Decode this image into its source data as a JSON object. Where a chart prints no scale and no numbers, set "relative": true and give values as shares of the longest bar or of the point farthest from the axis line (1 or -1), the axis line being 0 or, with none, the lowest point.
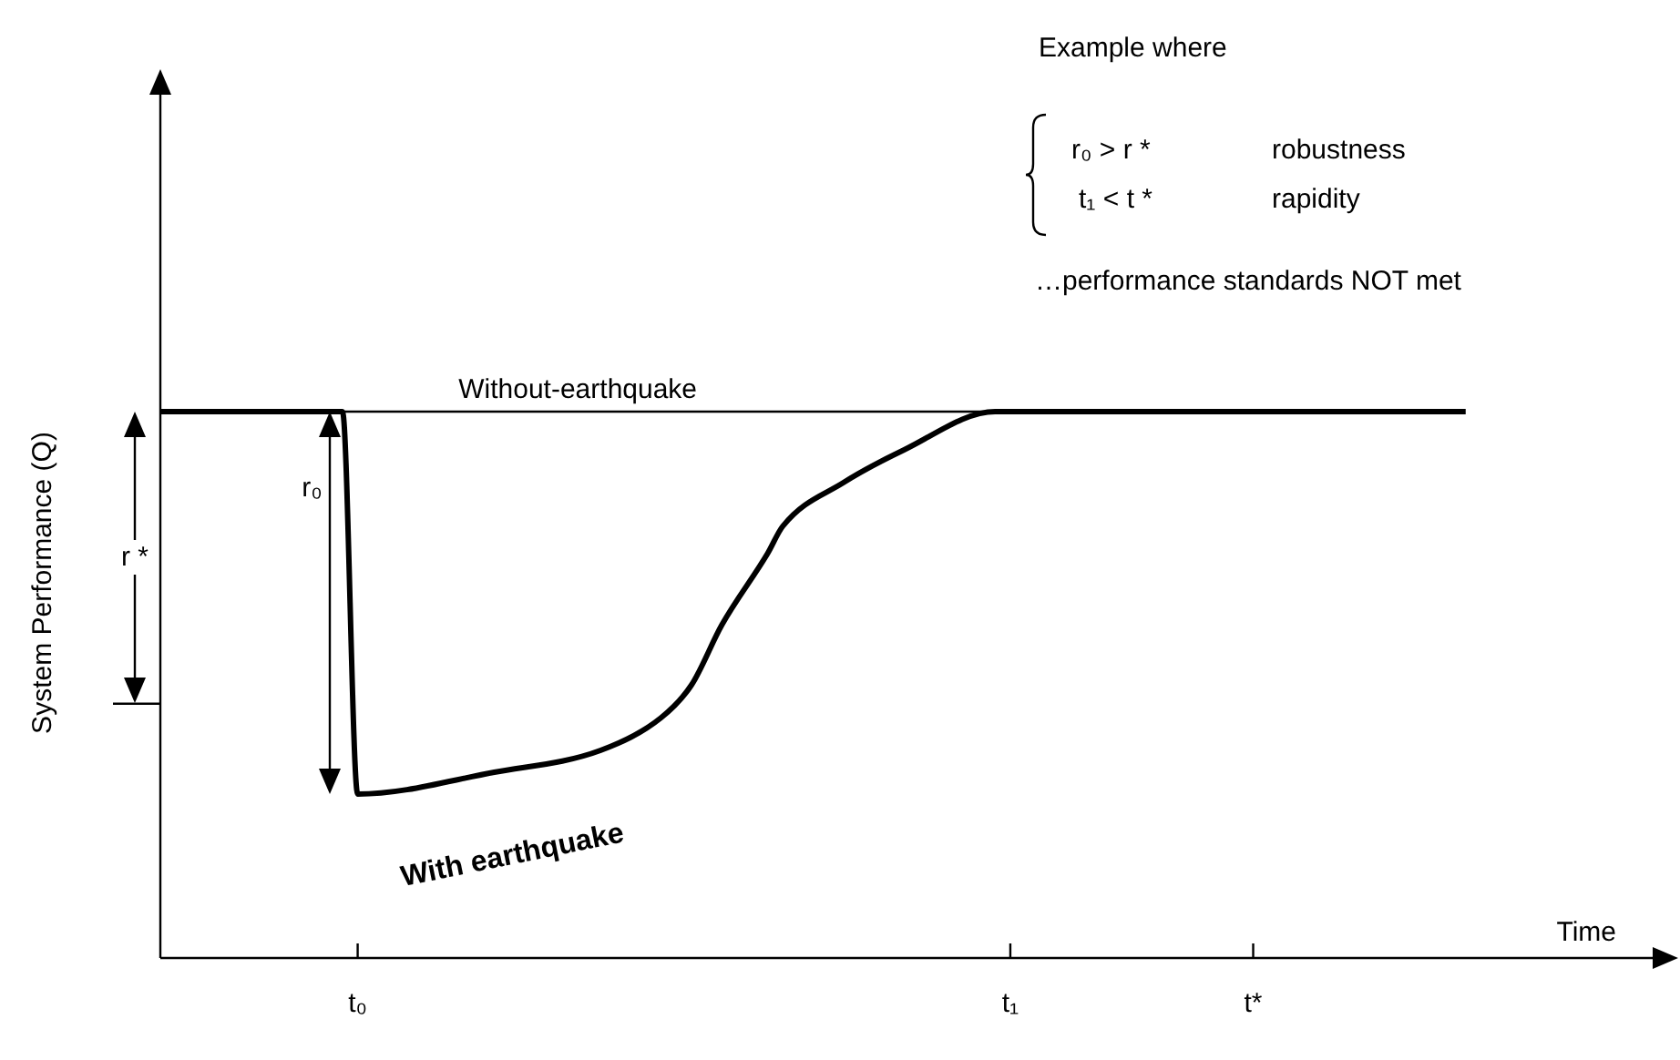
{
  "chart_data": {
    "type": "line",
    "relative": true,
    "xlabel": "Time",
    "ylabel": "System Performance (Q)",
    "categories": [
      null,
      null,
      null,
      null,
      null,
      null,
      null,
      null,
      null,
      null,
      null,
      null,
      null,
      "t₀",
      null,
      null,
      null,
      null,
      null,
      null,
      null,
      null,
      null,
      null,
      null,
      null,
      null,
      null,
      null,
      null,
      null,
      null,
      null,
      null,
      null,
      null,
      null,
      null,
      null,
      null,
      null,
      null,
      null,
      null,
      null,
      null,
      null,
      null,
      null,
      null,
      null,
      null,
      null,
      null,
      null,
      null,
      "t₁",
      null,
      null,
      null,
      null,
      null,
      null,
      null,
      null,
      null,
      null,
      null,
      null,
      null,
      null,
      null,
      "t*",
      null,
      null,
      null,
      null,
      null,
      null,
      null,
      null,
      null,
      null,
      null,
      null,
      null,
      null,
      null,
      null,
      null,
      null,
      null,
      null,
      null,
      null,
      null,
      null,
      null,
      null,
      null,
      null
    ],
    "marker": "none",
    "line_style": "solid",
    "series": [
      {
        "name": "With earthquake",
        "color": "#000000",
        "values": [
          1,
          null,
          null,
          null,
          null,
          null,
          null,
          null,
          null,
          null,
          null,
          null,
          1,
          0.3,
          null,
          null,
          null,
          null,
          null,
          null,
          null,
          null,
          0.34,
          null,
          null,
          null,
          null,
          null,
          null,
          0.38,
          null,
          null,
          null,
          0.44,
          null,
          0.5,
          null,
          0.61,
          null,
          null,
          0.74,
          0.79,
          null,
          null,
          null,
          0.87,
          null,
          null,
          null,
          0.93,
          null,
          null,
          null,
          null,
          null,
          1,
          null,
          null,
          null,
          null,
          null,
          null,
          null,
          null,
          null,
          null,
          null,
          null,
          null,
          null,
          null,
          null,
          null,
          null,
          null,
          null,
          null,
          null,
          null,
          null,
          null,
          null,
          null,
          null,
          null,
          null,
          1,
          null,
          null,
          null,
          null,
          null,
          null,
          null,
          null,
          null,
          null,
          null,
          null,
          null,
          null
        ]
      },
      {
        "name": "Without-earthquake",
        "color": "#000000",
        "values": [
          1,
          null,
          null,
          null,
          null,
          null,
          null,
          null,
          null,
          null,
          null,
          null,
          null,
          null,
          null,
          null,
          null,
          null,
          null,
          null,
          null,
          null,
          null,
          null,
          null,
          null,
          null,
          null,
          null,
          null,
          null,
          null,
          null,
          null,
          null,
          null,
          null,
          null,
          null,
          null,
          null,
          null,
          null,
          null,
          null,
          null,
          null,
          null,
          null,
          null,
          null,
          null,
          null,
          null,
          null,
          1,
          null,
          null,
          null,
          null,
          null,
          null,
          null,
          null,
          null,
          null,
          null,
          null,
          null,
          null,
          null,
          null,
          null,
          null,
          null,
          null,
          null,
          null,
          null,
          null,
          null,
          null,
          null,
          null,
          null,
          null,
          null,
          null,
          null,
          null,
          null,
          null,
          null,
          null,
          null,
          null,
          null,
          null,
          null,
          null,
          null
        ]
      }
    ],
    "annotations": [
      "Example where",
      "r₀ > r *",
      "robustness",
      "t₁ < t *",
      "rapidity",
      "…performance standards NOT met",
      "r₀",
      "r *"
    ]
  }
}
